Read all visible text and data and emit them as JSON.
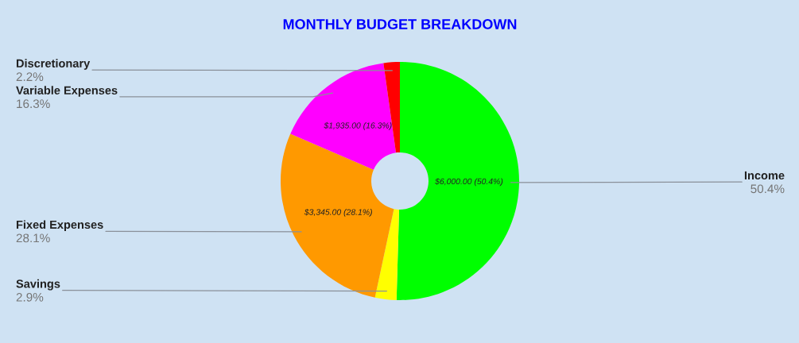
{
  "chart_data": {
    "type": "donut",
    "title": "MONTHLY BUDGET BREAKDOWN",
    "categories": [
      "Income",
      "Savings",
      "Fixed Expenses",
      "Variable Expenses",
      "Discretionary"
    ],
    "values": [
      50.4,
      2.9,
      28.1,
      16.3,
      2.2
    ],
    "colors": [
      "#00ff00",
      "#ffff00",
      "#ff9900",
      "#ff00ff",
      "#ff0000"
    ],
    "value_labels": [
      "$6,000.00 (50.4%)",
      null,
      "$3,345.00 (28.1%)",
      "$1,935.00 (16.3%)",
      null
    ],
    "annotations": [
      "50.4%",
      "2.9%",
      "28.1%",
      "16.3%",
      "2.2%"
    ]
  }
}
